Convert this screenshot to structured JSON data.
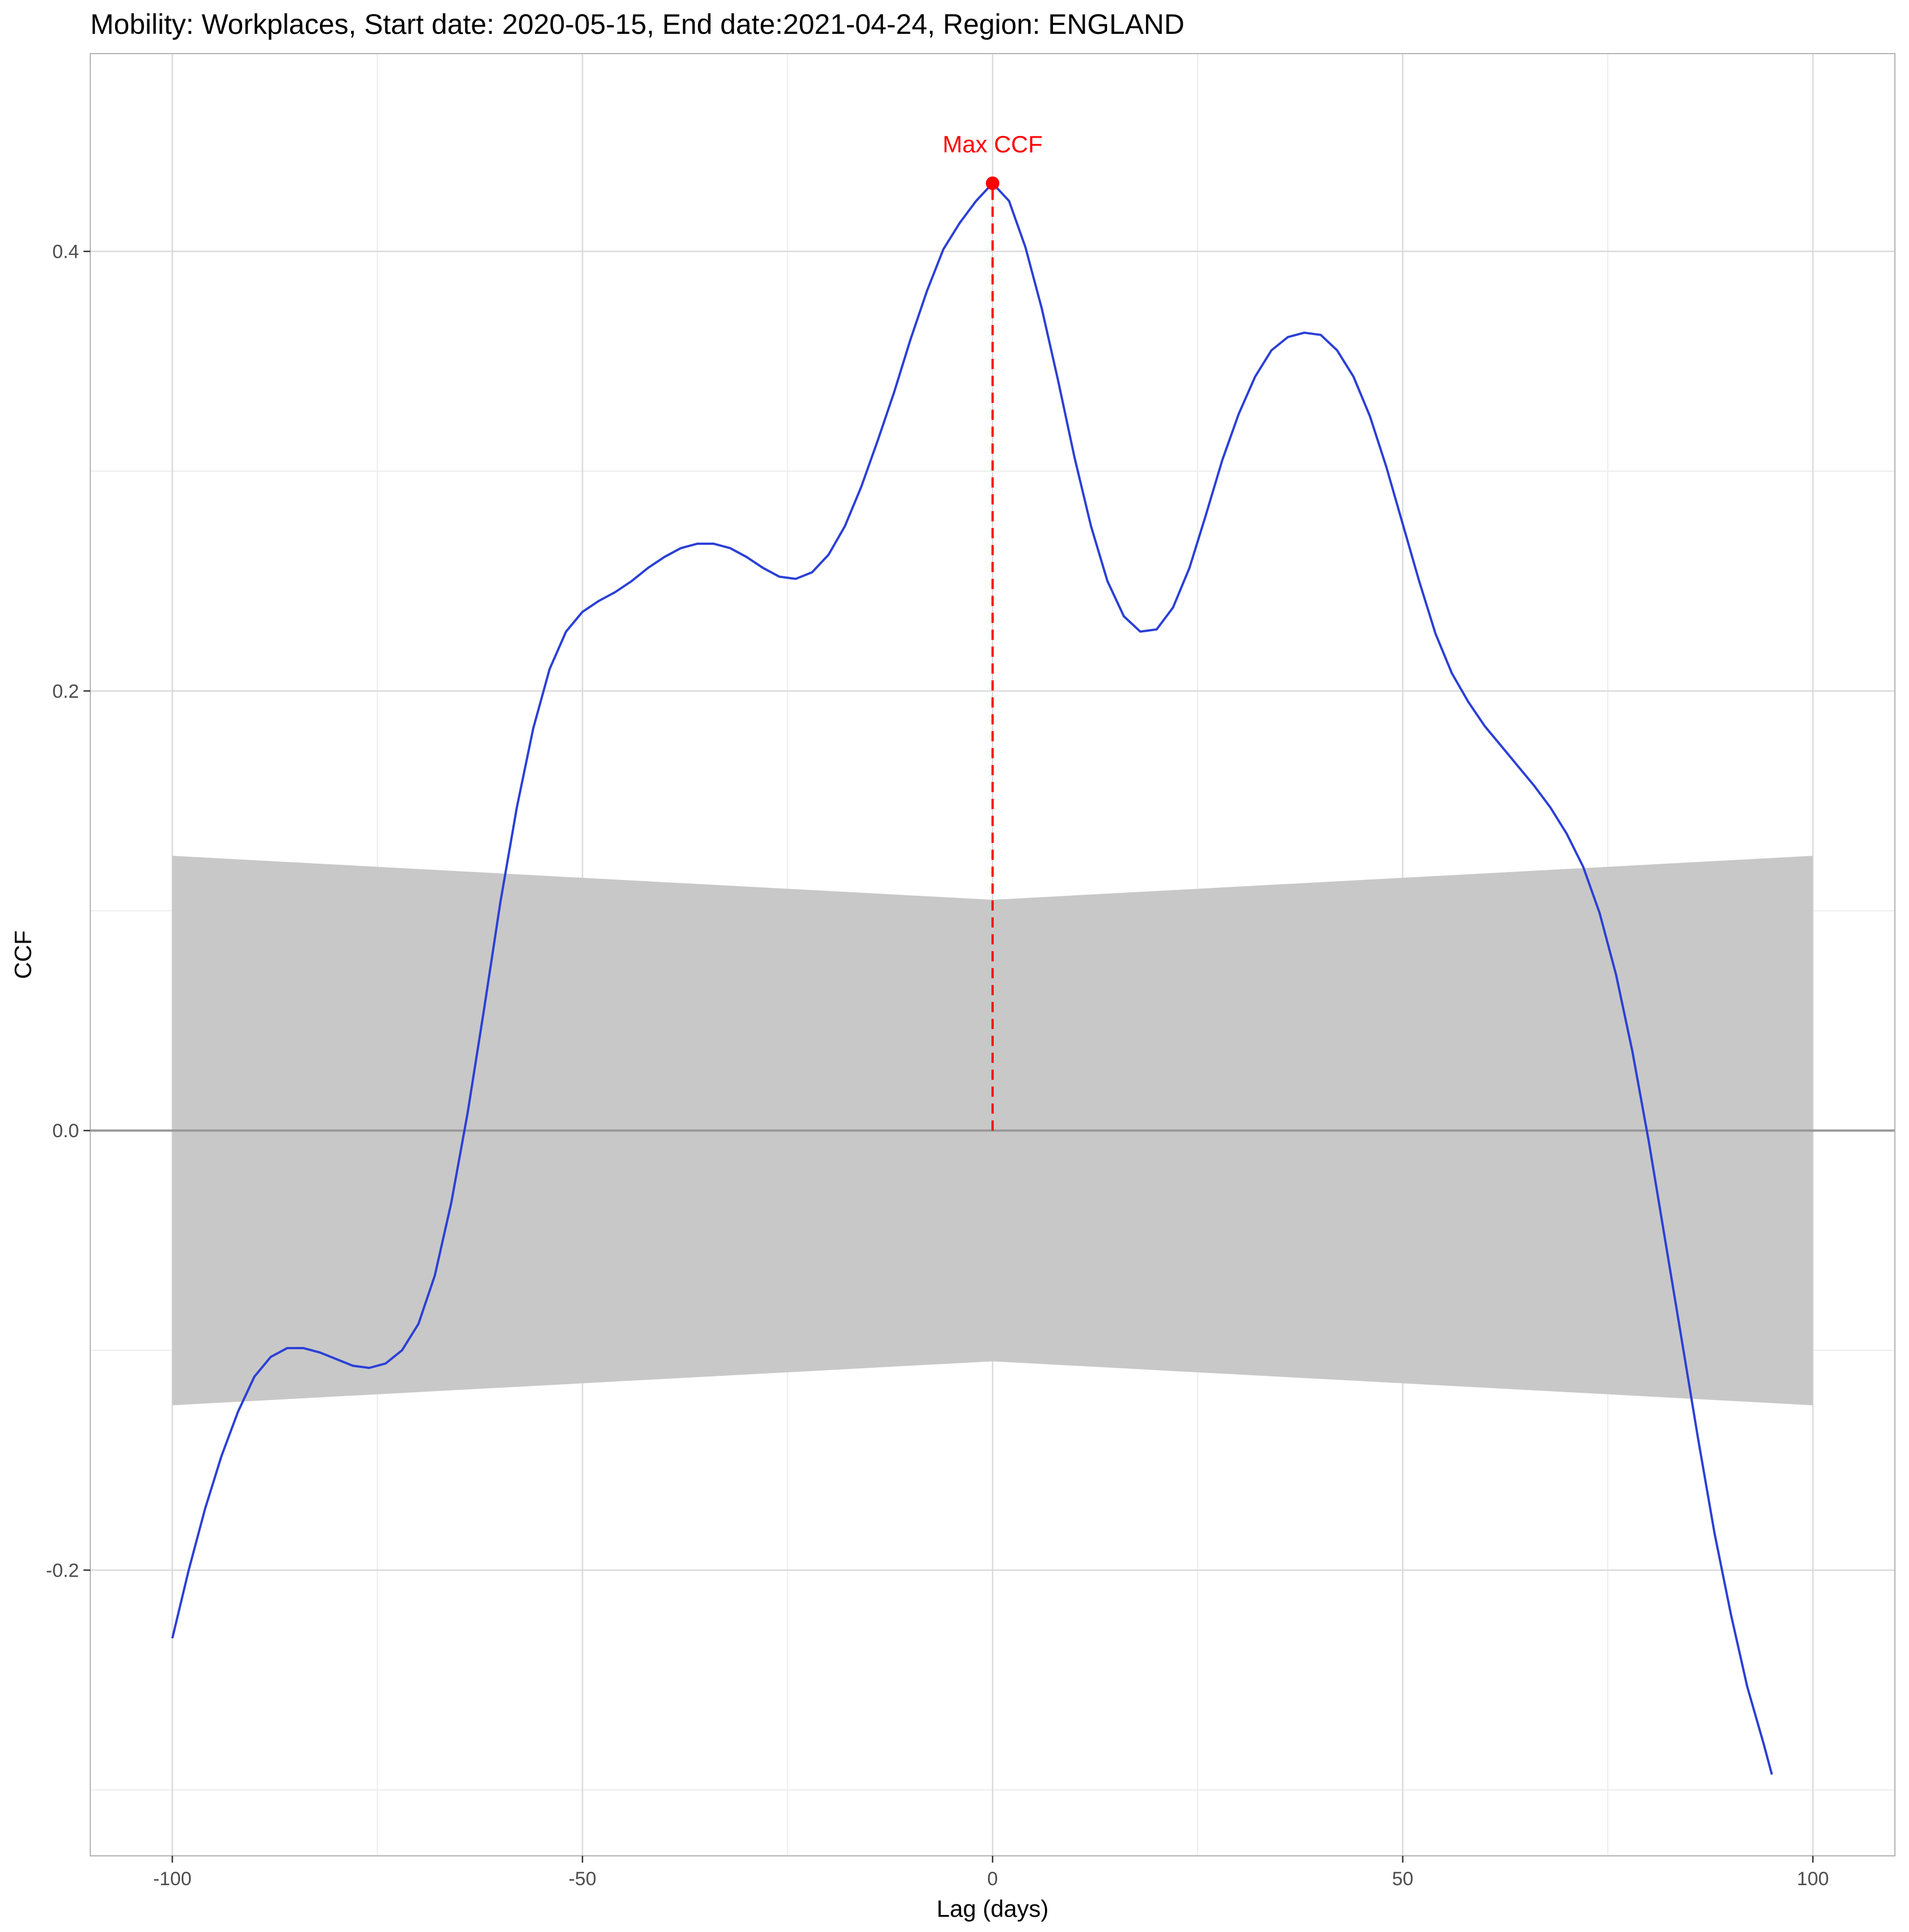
{
  "chart_data": {
    "type": "line",
    "title": "Mobility: Workplaces, Start date: 2020-05-15, End date:2021-04-24, Region: ENGLAND",
    "xlabel": "Lag (days)",
    "ylabel": "CCF",
    "xlim": [
      -110,
      110
    ],
    "ylim": [
      -0.33,
      0.49
    ],
    "x_ticks": [
      -100,
      -50,
      0,
      50,
      100
    ],
    "x_tick_labels": [
      "-100",
      "-50",
      "0",
      "50",
      "100"
    ],
    "y_ticks": [
      -0.2,
      0.0,
      0.2,
      0.4
    ],
    "y_tick_labels": [
      "-0.2",
      "0.0",
      "0.2",
      "0.4"
    ],
    "x_minor_ticks": [
      -75,
      -25,
      25,
      75
    ],
    "y_minor_ticks": [
      -0.3,
      -0.1,
      0.1,
      0.3
    ],
    "grid": true,
    "series": [
      {
        "color": "#2a3fd6",
        "points": [
          [
            -100,
            -0.231
          ],
          [
            -98,
            -0.2
          ],
          [
            -96,
            -0.172
          ],
          [
            -94,
            -0.148
          ],
          [
            -92,
            -0.128
          ],
          [
            -90,
            -0.112
          ],
          [
            -88,
            -0.103
          ],
          [
            -86,
            -0.099
          ],
          [
            -84,
            -0.099
          ],
          [
            -82,
            -0.101
          ],
          [
            -80,
            -0.104
          ],
          [
            -78,
            -0.107
          ],
          [
            -76,
            -0.108
          ],
          [
            -74,
            -0.106
          ],
          [
            -72,
            -0.1
          ],
          [
            -70,
            -0.088
          ],
          [
            -68,
            -0.066
          ],
          [
            -66,
            -0.033
          ],
          [
            -64,
            0.008
          ],
          [
            -62,
            0.055
          ],
          [
            -60,
            0.104
          ],
          [
            -58,
            0.147
          ],
          [
            -56,
            0.183
          ],
          [
            -54,
            0.21
          ],
          [
            -52,
            0.227
          ],
          [
            -50,
            0.236
          ],
          [
            -48,
            0.241
          ],
          [
            -46,
            0.245
          ],
          [
            -44,
            0.25
          ],
          [
            -42,
            0.256
          ],
          [
            -40,
            0.261
          ],
          [
            -38,
            0.265
          ],
          [
            -36,
            0.267
          ],
          [
            -34,
            0.267
          ],
          [
            -32,
            0.265
          ],
          [
            -30,
            0.261
          ],
          [
            -28,
            0.256
          ],
          [
            -26,
            0.252
          ],
          [
            -24,
            0.251
          ],
          [
            -22,
            0.254
          ],
          [
            -20,
            0.262
          ],
          [
            -18,
            0.275
          ],
          [
            -16,
            0.293
          ],
          [
            -14,
            0.314
          ],
          [
            -12,
            0.336
          ],
          [
            -10,
            0.36
          ],
          [
            -8,
            0.382
          ],
          [
            -6,
            0.401
          ],
          [
            -4,
            0.413
          ],
          [
            -2,
            0.423
          ],
          [
            0,
            0.431
          ],
          [
            2,
            0.423
          ],
          [
            4,
            0.402
          ],
          [
            6,
            0.374
          ],
          [
            8,
            0.341
          ],
          [
            10,
            0.306
          ],
          [
            12,
            0.275
          ],
          [
            14,
            0.25
          ],
          [
            16,
            0.234
          ],
          [
            18,
            0.227
          ],
          [
            20,
            0.228
          ],
          [
            22,
            0.238
          ],
          [
            24,
            0.256
          ],
          [
            26,
            0.28
          ],
          [
            28,
            0.305
          ],
          [
            30,
            0.326
          ],
          [
            32,
            0.343
          ],
          [
            34,
            0.355
          ],
          [
            36,
            0.361
          ],
          [
            38,
            0.363
          ],
          [
            40,
            0.362
          ],
          [
            42,
            0.355
          ],
          [
            44,
            0.343
          ],
          [
            46,
            0.325
          ],
          [
            48,
            0.302
          ],
          [
            50,
            0.276
          ],
          [
            52,
            0.25
          ],
          [
            54,
            0.226
          ],
          [
            56,
            0.208
          ],
          [
            58,
            0.195
          ],
          [
            60,
            0.184
          ],
          [
            62,
            0.175
          ],
          [
            64,
            0.166
          ],
          [
            66,
            0.157
          ],
          [
            68,
            0.147
          ],
          [
            70,
            0.135
          ],
          [
            72,
            0.12
          ],
          [
            74,
            0.099
          ],
          [
            76,
            0.071
          ],
          [
            78,
            0.036
          ],
          [
            80,
            -0.005
          ],
          [
            82,
            -0.05
          ],
          [
            84,
            -0.095
          ],
          [
            86,
            -0.14
          ],
          [
            88,
            -0.183
          ],
          [
            90,
            -0.22
          ],
          [
            92,
            -0.253
          ],
          [
            94,
            -0.279
          ],
          [
            95,
            -0.293
          ]
        ]
      }
    ],
    "confidence_band": {
      "color": "#c8c8c8",
      "x": [
        -100,
        0,
        100
      ],
      "upper": [
        0.125,
        0.105,
        0.125
      ],
      "lower": [
        -0.125,
        -0.105,
        -0.125
      ]
    },
    "zero_line": 0.0,
    "max_marker": {
      "x": 0,
      "y": 0.431,
      "label": "Max CCF",
      "color": "#ff0000"
    }
  }
}
